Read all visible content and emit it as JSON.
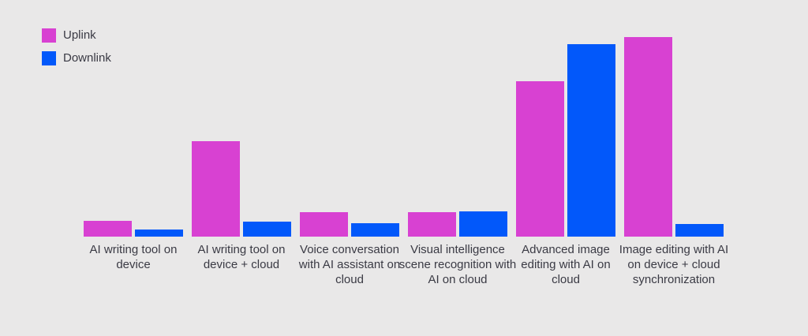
{
  "chart_data": {
    "type": "bar",
    "title": "",
    "xlabel": "",
    "ylabel": "",
    "grid": false,
    "axes_visible": false,
    "legend_position": "top-left",
    "value_scale": "relative height units (no axis or value labels shown)",
    "ylim": [
      0,
      260
    ],
    "background_color": "#e9e8e8",
    "text_color": "#3a3a44",
    "categories": [
      "AI writing tool on device",
      "AI writing tool on device + cloud",
      "Voice conversation with AI assistant on cloud",
      "Visual intelligence scene recognition with AI on cloud",
      "Advanced image editing with AI on cloud",
      "Image editing with AI on device + cloud synchronization"
    ],
    "series": [
      {
        "name": "Uplink",
        "color": "#d841d2",
        "values": [
          20,
          121,
          31,
          31,
          197,
          253
        ]
      },
      {
        "name": "Downlink",
        "color": "#0258fa",
        "values": [
          9,
          19,
          17,
          32,
          244,
          16
        ]
      }
    ]
  }
}
